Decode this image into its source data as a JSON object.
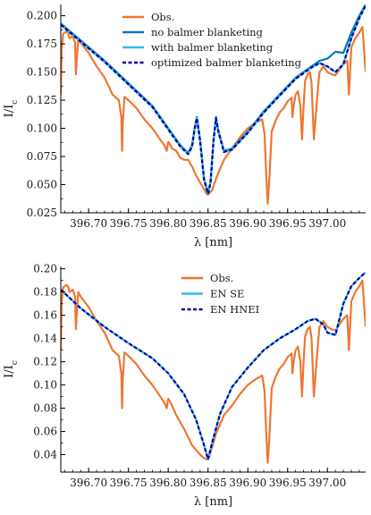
{
  "chart_data": [
    {
      "type": "line",
      "xlabel": "λ [nm]",
      "ylabel": "I/I_c",
      "xlim": [
        396.665,
        397.048
      ],
      "ylim": [
        0.025,
        0.21
      ],
      "xticks": [
        396.7,
        396.75,
        396.8,
        396.85,
        396.9,
        396.95,
        397.0
      ],
      "xtick_labels": [
        "396.70",
        "396.75",
        "396.80",
        "396.85",
        "396.90",
        "396.95",
        "397.00"
      ],
      "yticks": [
        0.025,
        0.05,
        0.075,
        0.1,
        0.125,
        0.15,
        0.175,
        0.2
      ],
      "ytick_labels": [
        "0.025",
        "0.050",
        "0.075",
        "0.100",
        "0.125",
        "0.150",
        "0.175",
        "0.200"
      ],
      "legend_position": "top-right",
      "series": [
        {
          "name": "Obs.",
          "color": "#ee7733",
          "style": "solid",
          "x": [
            396.665,
            396.666,
            396.668,
            396.672,
            396.674,
            396.676,
            396.68,
            396.683,
            396.684,
            396.685,
            396.687,
            396.69,
            396.7,
            396.71,
            396.72,
            396.73,
            396.738,
            396.741,
            396.742,
            396.743,
            396.745,
            396.75,
            396.76,
            396.77,
            396.78,
            396.79,
            396.795,
            396.798,
            396.8,
            396.802,
            396.805,
            396.81,
            396.815,
            396.82,
            396.825,
            396.83,
            396.835,
            396.84,
            396.845,
            396.848,
            396.85,
            396.855,
            396.86,
            396.865,
            396.87,
            396.88,
            396.89,
            396.9,
            396.91,
            396.918,
            396.921,
            396.923,
            396.925,
            396.927,
            396.93,
            396.935,
            396.94,
            396.945,
            396.95,
            396.955,
            396.956,
            396.958,
            396.96,
            396.963,
            396.966,
            396.968,
            396.97,
            396.972,
            396.975,
            396.978,
            396.98,
            396.983,
            396.988,
            396.99,
            396.995,
            397.0,
            397.005,
            397.01,
            397.015,
            397.02,
            397.025,
            397.027,
            397.03,
            397.035,
            397.04,
            397.044,
            397.046,
            397.048
          ],
          "y": [
            0.13,
            0.17,
            0.184,
            0.186,
            0.185,
            0.18,
            0.182,
            0.176,
            0.148,
            0.16,
            0.18,
            0.176,
            0.167,
            0.155,
            0.145,
            0.13,
            0.125,
            0.11,
            0.08,
            0.105,
            0.128,
            0.125,
            0.118,
            0.108,
            0.1,
            0.09,
            0.085,
            0.08,
            0.088,
            0.086,
            0.082,
            0.08,
            0.074,
            0.072,
            0.072,
            0.066,
            0.058,
            0.052,
            0.046,
            0.042,
            0.041,
            0.045,
            0.055,
            0.064,
            0.072,
            0.082,
            0.092,
            0.1,
            0.105,
            0.108,
            0.095,
            0.06,
            0.033,
            0.055,
            0.097,
            0.107,
            0.114,
            0.118,
            0.124,
            0.127,
            0.11,
            0.122,
            0.13,
            0.133,
            0.12,
            0.09,
            0.12,
            0.142,
            0.148,
            0.15,
            0.14,
            0.09,
            0.135,
            0.15,
            0.155,
            0.15,
            0.148,
            0.147,
            0.152,
            0.157,
            0.16,
            0.13,
            0.172,
            0.18,
            0.185,
            0.19,
            0.17,
            0.15
          ]
        },
        {
          "name": "no balmer blanketing",
          "color": "#0077bb",
          "style": "solid",
          "x": [
            396.665,
            396.69,
            396.72,
            396.75,
            396.78,
            396.8,
            396.815,
            396.825,
            396.83,
            396.833,
            396.836,
            396.84,
            396.845,
            396.85,
            396.853,
            396.857,
            396.86,
            396.863,
            396.87,
            396.88,
            396.9,
            396.92,
            396.94,
            396.96,
            396.98,
            396.99,
            397.0,
            397.01,
            397.02,
            397.03,
            397.04,
            397.048
          ],
          "y": [
            0.193,
            0.178,
            0.16,
            0.14,
            0.12,
            0.1,
            0.085,
            0.078,
            0.085,
            0.1,
            0.11,
            0.09,
            0.055,
            0.043,
            0.052,
            0.09,
            0.11,
            0.098,
            0.08,
            0.082,
            0.097,
            0.115,
            0.13,
            0.145,
            0.155,
            0.16,
            0.162,
            0.168,
            0.167,
            0.185,
            0.2,
            0.21
          ]
        },
        {
          "name": "with balmer blanketing",
          "color": "#33bbee",
          "style": "solid",
          "x": [
            396.665,
            396.69,
            396.72,
            396.75,
            396.78,
            396.8,
            396.815,
            396.825,
            396.83,
            396.833,
            396.836,
            396.84,
            396.845,
            396.85,
            396.853,
            396.857,
            396.86,
            396.863,
            396.87,
            396.88,
            396.9,
            396.92,
            396.94,
            396.96,
            396.98,
            396.99,
            397.0,
            397.01,
            397.02,
            397.03,
            397.04,
            397.048
          ],
          "y": [
            0.192,
            0.177,
            0.159,
            0.139,
            0.119,
            0.099,
            0.084,
            0.077,
            0.084,
            0.099,
            0.109,
            0.089,
            0.054,
            0.042,
            0.051,
            0.089,
            0.109,
            0.097,
            0.079,
            0.081,
            0.096,
            0.114,
            0.129,
            0.144,
            0.154,
            0.158,
            0.155,
            0.15,
            0.157,
            0.18,
            0.198,
            0.209
          ]
        },
        {
          "name": "optimized balmer blanketing",
          "color": "#000099",
          "style": "dashed",
          "x": [
            396.665,
            396.69,
            396.72,
            396.75,
            396.78,
            396.8,
            396.815,
            396.825,
            396.83,
            396.833,
            396.836,
            396.84,
            396.845,
            396.85,
            396.853,
            396.857,
            396.86,
            396.863,
            396.87,
            396.88,
            396.9,
            396.92,
            396.94,
            396.96,
            396.98,
            396.99,
            397.0,
            397.01,
            397.02,
            397.03,
            397.04,
            397.048
          ],
          "y": [
            0.192,
            0.177,
            0.159,
            0.139,
            0.119,
            0.099,
            0.084,
            0.077,
            0.084,
            0.099,
            0.109,
            0.089,
            0.054,
            0.042,
            0.051,
            0.089,
            0.109,
            0.097,
            0.079,
            0.081,
            0.096,
            0.114,
            0.129,
            0.144,
            0.154,
            0.158,
            0.155,
            0.15,
            0.157,
            0.18,
            0.198,
            0.209
          ]
        }
      ]
    },
    {
      "type": "line",
      "xlabel": "λ [nm]",
      "ylabel": "I/I_c",
      "xlim": [
        396.665,
        397.048
      ],
      "ylim": [
        0.025,
        0.202
      ],
      "xticks": [
        396.7,
        396.75,
        396.8,
        396.85,
        396.9,
        396.95,
        397.0
      ],
      "xtick_labels": [
        "396.70",
        "396.75",
        "396.80",
        "396.85",
        "396.90",
        "396.95",
        "397.00"
      ],
      "yticks": [
        0.04,
        0.06,
        0.08,
        0.1,
        0.12,
        0.14,
        0.16,
        0.18,
        0.2
      ],
      "ytick_labels": [
        "0.04",
        "0.06",
        "0.08",
        "0.10",
        "0.12",
        "0.14",
        "0.16",
        "0.18",
        "0.20"
      ],
      "legend_position": "top-center",
      "series": [
        {
          "name": "Obs.",
          "color": "#ee7733",
          "style": "solid",
          "x": [
            396.665,
            396.666,
            396.668,
            396.672,
            396.674,
            396.676,
            396.68,
            396.683,
            396.684,
            396.685,
            396.687,
            396.69,
            396.7,
            396.71,
            396.72,
            396.73,
            396.738,
            396.741,
            396.742,
            396.743,
            396.745,
            396.75,
            396.76,
            396.77,
            396.78,
            396.79,
            396.795,
            396.798,
            396.8,
            396.802,
            396.805,
            396.81,
            396.815,
            396.82,
            396.825,
            396.83,
            396.835,
            396.84,
            396.845,
            396.848,
            396.85,
            396.855,
            396.86,
            396.865,
            396.87,
            396.88,
            396.89,
            396.9,
            396.91,
            396.918,
            396.921,
            396.923,
            396.925,
            396.927,
            396.93,
            396.935,
            396.94,
            396.945,
            396.95,
            396.955,
            396.956,
            396.958,
            396.96,
            396.963,
            396.966,
            396.968,
            396.97,
            396.972,
            396.975,
            396.978,
            396.98,
            396.983,
            396.988,
            396.99,
            396.995,
            397.0,
            397.005,
            397.01,
            397.015,
            397.02,
            397.025,
            397.027,
            397.03,
            397.035,
            397.04,
            397.044,
            397.046,
            397.048
          ],
          "y": [
            0.13,
            0.17,
            0.184,
            0.186,
            0.185,
            0.18,
            0.182,
            0.176,
            0.148,
            0.16,
            0.18,
            0.176,
            0.167,
            0.155,
            0.145,
            0.13,
            0.125,
            0.11,
            0.08,
            0.105,
            0.128,
            0.125,
            0.118,
            0.108,
            0.1,
            0.09,
            0.085,
            0.08,
            0.088,
            0.086,
            0.082,
            0.074,
            0.068,
            0.062,
            0.055,
            0.048,
            0.044,
            0.04,
            0.037,
            0.036,
            0.036,
            0.046,
            0.058,
            0.066,
            0.074,
            0.082,
            0.092,
            0.1,
            0.105,
            0.108,
            0.095,
            0.06,
            0.033,
            0.055,
            0.097,
            0.107,
            0.114,
            0.118,
            0.124,
            0.127,
            0.11,
            0.122,
            0.13,
            0.133,
            0.12,
            0.09,
            0.12,
            0.142,
            0.148,
            0.15,
            0.14,
            0.09,
            0.135,
            0.15,
            0.155,
            0.15,
            0.148,
            0.147,
            0.152,
            0.157,
            0.16,
            0.13,
            0.172,
            0.18,
            0.185,
            0.19,
            0.17,
            0.15
          ]
        },
        {
          "name": "EN SE",
          "color": "#33bbee",
          "style": "solid",
          "x": [
            396.665,
            396.69,
            396.72,
            396.75,
            396.78,
            396.8,
            396.82,
            396.835,
            396.845,
            396.85,
            396.855,
            396.865,
            396.88,
            396.9,
            396.92,
            396.94,
            396.96,
            396.975,
            396.985,
            396.995,
            397.0,
            397.01,
            397.02,
            397.03,
            397.04,
            397.048
          ],
          "y": [
            0.182,
            0.166,
            0.15,
            0.136,
            0.123,
            0.11,
            0.092,
            0.07,
            0.048,
            0.036,
            0.05,
            0.075,
            0.098,
            0.115,
            0.13,
            0.14,
            0.148,
            0.155,
            0.157,
            0.152,
            0.145,
            0.143,
            0.17,
            0.185,
            0.192,
            0.197
          ]
        },
        {
          "name": "EN HNEI",
          "color": "#000099",
          "style": "dashed",
          "x": [
            396.665,
            396.69,
            396.72,
            396.75,
            396.78,
            396.8,
            396.82,
            396.835,
            396.845,
            396.85,
            396.855,
            396.865,
            396.88,
            396.9,
            396.92,
            396.94,
            396.96,
            396.975,
            396.985,
            396.995,
            397.0,
            397.01,
            397.02,
            397.03,
            397.04,
            397.048
          ],
          "y": [
            0.182,
            0.166,
            0.15,
            0.136,
            0.123,
            0.11,
            0.092,
            0.07,
            0.048,
            0.036,
            0.05,
            0.075,
            0.098,
            0.115,
            0.13,
            0.14,
            0.148,
            0.155,
            0.157,
            0.152,
            0.145,
            0.143,
            0.17,
            0.185,
            0.192,
            0.197
          ]
        }
      ]
    }
  ]
}
